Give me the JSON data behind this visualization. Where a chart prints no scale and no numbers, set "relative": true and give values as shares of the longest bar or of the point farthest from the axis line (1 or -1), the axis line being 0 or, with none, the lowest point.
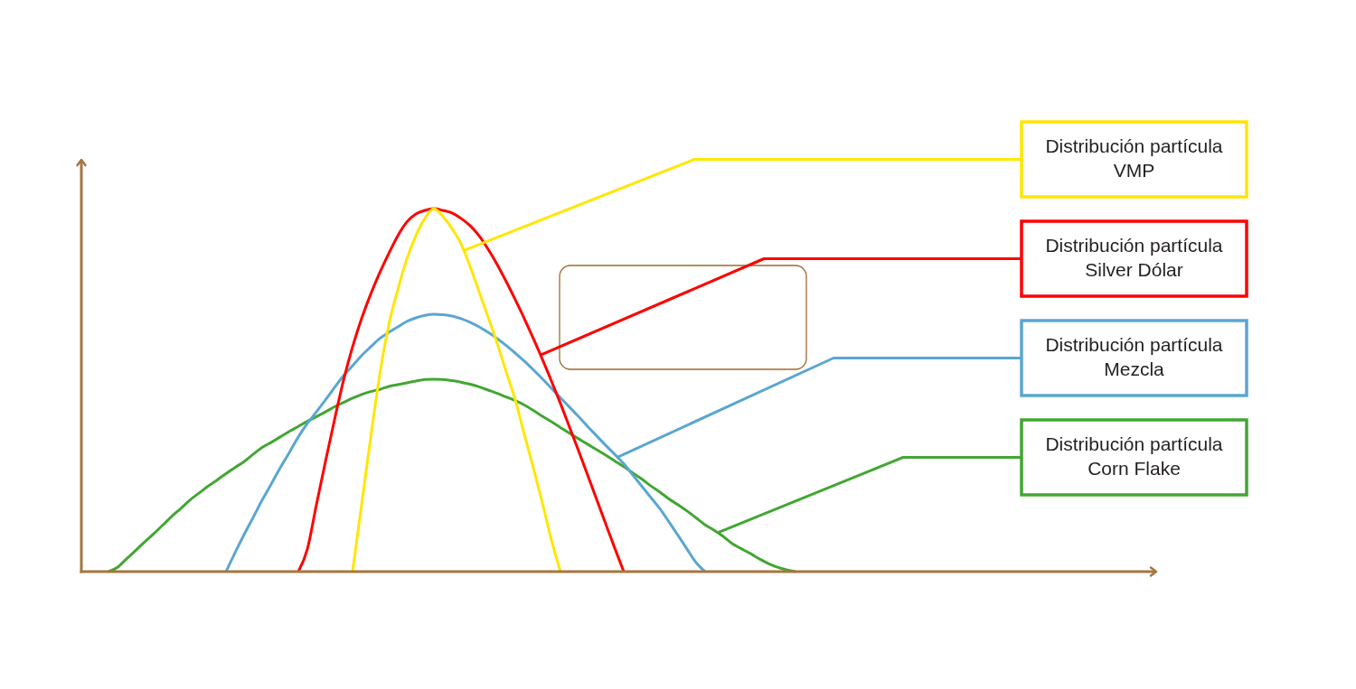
{
  "chart_data": {
    "type": "line",
    "relative": true,
    "legend": "right",
    "categories": [
      null,
      null,
      null,
      null,
      null,
      null,
      null,
      null,
      null,
      null,
      null,
      null,
      null,
      null,
      null,
      null,
      null,
      null,
      null,
      null,
      null,
      null,
      null,
      null,
      null,
      null,
      null,
      null,
      null,
      null,
      null,
      null,
      null,
      null,
      null,
      null,
      null,
      null,
      null,
      null,
      null,
      null,
      null,
      null,
      null,
      null,
      null,
      null,
      null,
      null,
      null,
      null,
      null,
      null,
      null,
      null,
      null,
      null,
      null,
      null,
      null,
      null,
      null,
      null,
      null,
      null,
      null,
      null,
      null,
      null,
      null,
      null,
      null,
      null,
      null,
      null,
      null,
      null,
      null,
      null,
      null,
      null,
      null,
      null,
      null,
      null,
      null,
      null,
      null,
      null,
      null,
      null,
      null,
      null,
      null,
      null,
      null,
      null,
      null,
      null,
      null,
      null,
      null,
      null,
      null,
      null,
      null,
      null,
      null,
      null,
      null,
      null,
      null,
      null,
      null,
      null,
      null,
      null,
      null
    ],
    "series": [
      {
        "name": "Distribución partícula VMP",
        "color": "#ffe600",
        "values": [
          null,
          null,
          null,
          null,
          null,
          null,
          null,
          null,
          null,
          null,
          null,
          null,
          null,
          null,
          null,
          null,
          null,
          null,
          null,
          null,
          null,
          null,
          null,
          null,
          null,
          null,
          null,
          null,
          null,
          null,
          0,
          0.184,
          0.368,
          0.542,
          0.679,
          0.776,
          0.861,
          0.925,
          0.973,
          1,
          0.978,
          0.945,
          0.903,
          0.841,
          0.771,
          0.701,
          0.629,
          0.55,
          0.473,
          0.378,
          0.286,
          0.189,
          0.087,
          0,
          null,
          null,
          null,
          null,
          null,
          null,
          null,
          null,
          null,
          null,
          null,
          null,
          null,
          null,
          null,
          null,
          null,
          null,
          null,
          null,
          null,
          null,
          null,
          null,
          null,
          null,
          null,
          null,
          null,
          null,
          null,
          null,
          null,
          null,
          null,
          null,
          null,
          null,
          null,
          null,
          null,
          null,
          null,
          null,
          null,
          null,
          null,
          null,
          null,
          null,
          null,
          null,
          null,
          null,
          null,
          null,
          null,
          null,
          null,
          null,
          null,
          null,
          null,
          null,
          null
        ]
      },
      {
        "name": "Distribución partícula Silver Dólar",
        "color": "#ff0000",
        "values": [
          null,
          null,
          null,
          null,
          null,
          null,
          null,
          null,
          null,
          null,
          null,
          null,
          null,
          null,
          null,
          null,
          null,
          null,
          null,
          null,
          null,
          null,
          null,
          null,
          0,
          0.062,
          0.184,
          0.303,
          0.418,
          0.527,
          0.619,
          0.697,
          0.764,
          0.823,
          0.876,
          0.925,
          0.963,
          0.985,
          0.995,
          1,
          0.995,
          0.988,
          0.973,
          0.953,
          0.925,
          0.888,
          0.846,
          0.799,
          0.749,
          0.697,
          0.642,
          0.585,
          0.525,
          0.463,
          0.398,
          0.333,
          0.266,
          0.199,
          0.132,
          0.065,
          0,
          null,
          null,
          null,
          null,
          null,
          null,
          null,
          null,
          null,
          null,
          null,
          null,
          null,
          null,
          null,
          null,
          null,
          null,
          null,
          null,
          null,
          null,
          null,
          null,
          null,
          null,
          null,
          null,
          null,
          null,
          null,
          null,
          null,
          null,
          null,
          null,
          null,
          null,
          null,
          null,
          null,
          null,
          null,
          null,
          null,
          null,
          null,
          null,
          null,
          null,
          null,
          null,
          null,
          null,
          null,
          null,
          null,
          null
        ]
      },
      {
        "name": "Distribución partícula Mezcla",
        "color": "#5ba6d1",
        "values": [
          null,
          null,
          null,
          null,
          null,
          null,
          null,
          null,
          null,
          null,
          null,
          null,
          null,
          null,
          null,
          null,
          0,
          0.052,
          0.102,
          0.149,
          0.197,
          0.241,
          0.286,
          0.328,
          0.371,
          0.408,
          0.44,
          0.473,
          0.507,
          0.54,
          0.567,
          0.595,
          0.619,
          0.642,
          0.659,
          0.674,
          0.689,
          0.699,
          0.706,
          0.709,
          0.708,
          0.704,
          0.697,
          0.687,
          0.674,
          0.659,
          0.642,
          0.623,
          0.602,
          0.58,
          0.556,
          0.531,
          0.505,
          0.479,
          0.453,
          0.427,
          0.4,
          0.374,
          0.348,
          0.323,
          0.297,
          0.266,
          0.235,
          0.204,
          0.173,
          0.137,
          0.1,
          0.062,
          0.025,
          0,
          null,
          null,
          null,
          null,
          null,
          null,
          null,
          null,
          null,
          null,
          null,
          null,
          null,
          null,
          null,
          null,
          null,
          null,
          null,
          null,
          null,
          null,
          null,
          null,
          null,
          null,
          null,
          null,
          null,
          null,
          null,
          null,
          null,
          null,
          null,
          null,
          null,
          null,
          null,
          null,
          null,
          null,
          null,
          null,
          null,
          null,
          null,
          null,
          null
        ]
      },
      {
        "name": "Distribución partícula Corn Flake",
        "color": "#42a633",
        "values": [
          null,
          null,
          null,
          0,
          0.012,
          0.035,
          0.058,
          0.082,
          0.104,
          0.128,
          0.152,
          0.174,
          0.197,
          0.216,
          0.235,
          0.252,
          0.27,
          0.287,
          0.303,
          0.323,
          0.342,
          0.356,
          0.371,
          0.386,
          0.4,
          0.414,
          0.427,
          0.44,
          0.454,
          0.466,
          0.478,
          0.488,
          0.496,
          0.502,
          0.51,
          0.515,
          0.52,
          0.525,
          0.529,
          0.53,
          0.529,
          0.526,
          0.522,
          0.516,
          0.509,
          0.5,
          0.491,
          0.481,
          0.471,
          0.459,
          0.444,
          0.428,
          0.413,
          0.397,
          0.381,
          0.366,
          0.351,
          0.336,
          0.321,
          0.305,
          0.289,
          0.272,
          0.255,
          0.236,
          0.219,
          0.2,
          0.184,
          0.167,
          0.148,
          0.129,
          0.114,
          0.097,
          0.077,
          0.063,
          0.05,
          0.035,
          0.022,
          0.012,
          0.005,
          0,
          null,
          null,
          null,
          null,
          null,
          null,
          null,
          null,
          null,
          null,
          null,
          null,
          null,
          null,
          null,
          null,
          null,
          null,
          null,
          null,
          null,
          null,
          null,
          null,
          null,
          null,
          null,
          null,
          null,
          null,
          null,
          null,
          null,
          null,
          null,
          null,
          null,
          null,
          null
        ]
      }
    ]
  }
}
